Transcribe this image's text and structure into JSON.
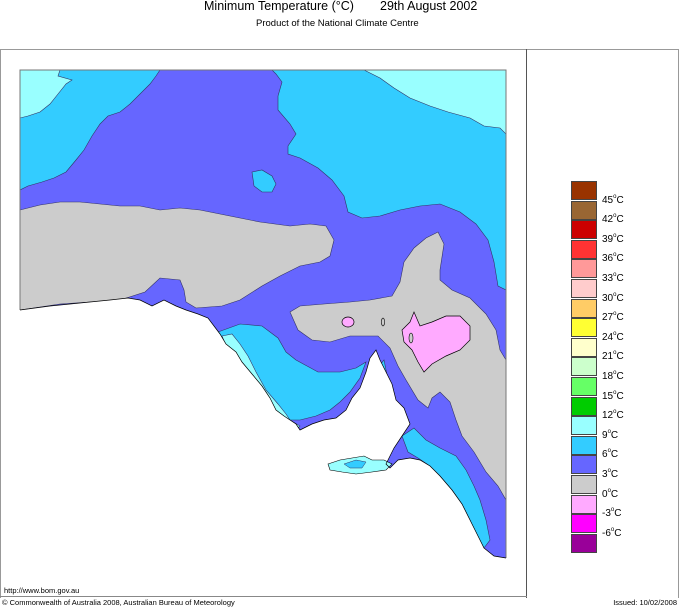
{
  "header": {
    "title": "Minimum Temperature (°C)",
    "date": "29th August 2002",
    "subtitle": "Product of the National Climate Centre"
  },
  "footer": {
    "url": "http://www.bom.gov.au",
    "copyright": "© Commonwealth of Australia 2008, Australian Bureau of Meteorology",
    "issued": "Issued: 10/02/2008"
  },
  "map": {
    "region": "South Australia",
    "variable": "Minimum Temperature",
    "units": "°C"
  },
  "legend": {
    "unit_suffix": "°C",
    "bands": [
      {
        "color": "#993300",
        "label": "45"
      },
      {
        "color": "#996633",
        "label": "42"
      },
      {
        "color": "#cc0000",
        "label": "39"
      },
      {
        "color": "#ff3333",
        "label": "36"
      },
      {
        "color": "#ff9999",
        "label": "33"
      },
      {
        "color": "#ffcccc",
        "label": "30"
      },
      {
        "color": "#ffcc66",
        "label": "27"
      },
      {
        "color": "#ffff33",
        "label": "24"
      },
      {
        "color": "#ffffcc",
        "label": "21"
      },
      {
        "color": "#ccffcc",
        "label": "18"
      },
      {
        "color": "#66ff66",
        "label": "15"
      },
      {
        "color": "#00cc00",
        "label": "12"
      },
      {
        "color": "#99ffff",
        "label": "9"
      },
      {
        "color": "#33ccff",
        "label": "6"
      },
      {
        "color": "#6666ff",
        "label": "3"
      },
      {
        "color": "#cccccc",
        "label": "0"
      },
      {
        "color": "#ffaaff",
        "label": "-3"
      },
      {
        "color": "#ff00ff",
        "label": "-6"
      },
      {
        "color": "#990099",
        "label": ""
      }
    ]
  },
  "colors": {
    "band_9": "#99ffff",
    "band_6": "#33ccff",
    "band_3": "#6666ff",
    "band_0": "#cccccc",
    "band_m3": "#ffaaff",
    "sea": "#ffffff"
  }
}
